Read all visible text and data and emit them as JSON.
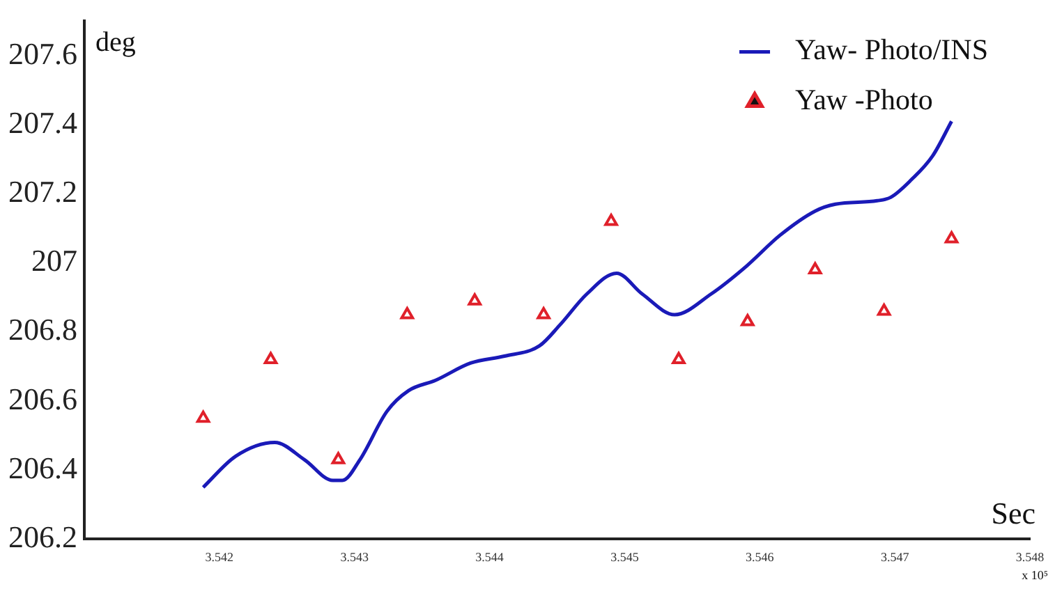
{
  "chart_data": {
    "type": "line",
    "xlabel": "Sec",
    "ylabel": "deg",
    "xlim": [
      3.541,
      3.548
    ],
    "xticks": [
      3.542,
      3.543,
      3.544,
      3.545,
      3.546,
      3.547,
      3.548
    ],
    "ylim": [
      206.2,
      207.7
    ],
    "yticks": [
      206.2,
      206.4,
      206.6,
      206.8,
      207,
      207.2,
      207.4,
      207.6
    ],
    "grid": false,
    "legend": "top right",
    "annotations": [
      "x 10⁵"
    ],
    "series": [
      {
        "name": "Yaw- Photo/INS",
        "type": "line",
        "color": "#1a1ab8",
        "marker": "none",
        "line_style": "solid",
        "x": [
          3.54188,
          3.54212,
          3.54241,
          3.54263,
          3.54284,
          3.54291,
          3.54304,
          3.54324,
          3.5434,
          3.5436,
          3.54386,
          3.54411,
          3.54437,
          3.54452,
          3.54472,
          3.54494,
          3.54513,
          3.54537,
          3.54564,
          3.5459,
          3.54615,
          3.54641,
          3.54656,
          3.54687,
          3.54697,
          3.54712,
          3.54728,
          3.54742
        ],
        "values": [
          206.35,
          206.44,
          206.48,
          206.43,
          206.37,
          206.37,
          206.43,
          206.57,
          206.63,
          206.66,
          206.71,
          206.73,
          206.76,
          206.82,
          206.91,
          206.97,
          206.91,
          206.85,
          206.91,
          206.99,
          207.08,
          207.15,
          207.17,
          207.18,
          207.19,
          207.24,
          207.31,
          207.41
        ]
      },
      {
        "name": "Yaw -Photo",
        "type": "scatter",
        "color": "#e0202a",
        "marker": "triangle",
        "x": [
          3.54188,
          3.54238,
          3.54288,
          3.54339,
          3.54389,
          3.5444,
          3.5449,
          3.5454,
          3.54591,
          3.54641,
          3.54692,
          3.54742
        ],
        "values": [
          206.55,
          206.72,
          206.43,
          206.85,
          206.89,
          206.85,
          207.12,
          206.72,
          206.83,
          206.98,
          206.86,
          207.07
        ]
      }
    ]
  }
}
